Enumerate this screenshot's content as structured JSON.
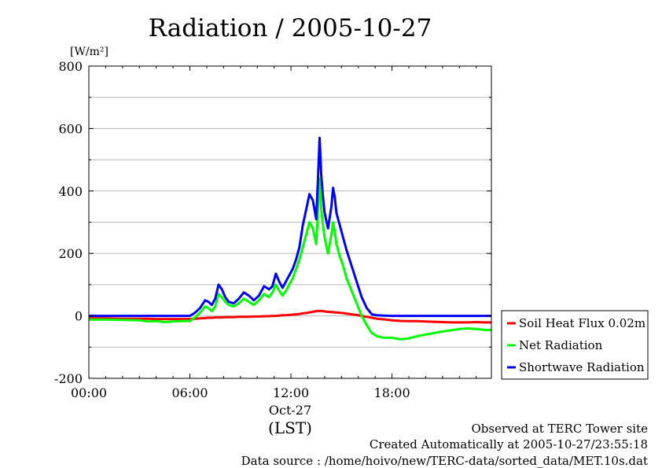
{
  "chart_data": {
    "type": "line",
    "title": "Radiation / 2005-10-27",
    "ylabel_unit": "[W/m²]",
    "xlabel": "(LST)",
    "x_date_label": "Oct-27",
    "xlim": [
      0,
      23.9
    ],
    "ylim": [
      -200,
      800
    ],
    "yticks": [
      -200,
      0,
      200,
      400,
      600,
      800
    ],
    "ytick_labels": [
      "-200",
      "0",
      "200",
      "400",
      "600",
      "800"
    ],
    "xticks": [
      0,
      6,
      12,
      18
    ],
    "xtick_labels": [
      "00:00",
      "06:00",
      "12:00",
      "18:00"
    ],
    "grid": true,
    "legend_position": "right",
    "x": [
      0,
      1,
      2,
      3,
      3.5,
      4,
      4.5,
      5,
      5.5,
      6,
      6.3,
      6.6,
      6.9,
      7.1,
      7.3,
      7.5,
      7.7,
      7.9,
      8.1,
      8.3,
      8.6,
      8.9,
      9.2,
      9.5,
      9.8,
      10.1,
      10.4,
      10.7,
      10.9,
      11.1,
      11.3,
      11.5,
      11.7,
      11.9,
      12.1,
      12.3,
      12.5,
      12.7,
      12.9,
      13.1,
      13.3,
      13.5,
      13.6,
      13.7,
      13.8,
      13.9,
      14.0,
      14.2,
      14.4,
      14.5,
      14.6,
      14.7,
      14.9,
      15.1,
      15.3,
      15.6,
      15.9,
      16.2,
      16.5,
      16.8,
      17.1,
      17.5,
      18,
      18.5,
      19,
      19.5,
      20,
      20.5,
      21,
      21.5,
      22,
      22.5,
      23,
      23.5,
      23.9
    ],
    "series": [
      {
        "name": "Soil Heat Flux 0.02m",
        "color": "#ff0000",
        "values": [
          -8,
          -8,
          -9,
          -9,
          -9,
          -10,
          -10,
          -10,
          -10,
          -10,
          -9,
          -8,
          -7,
          -6,
          -6,
          -5,
          -5,
          -5,
          -4,
          -4,
          -4,
          -3,
          -3,
          -3,
          -2,
          -2,
          -1,
          -1,
          0,
          0,
          1,
          2,
          2,
          3,
          4,
          5,
          6,
          8,
          9,
          11,
          13,
          15,
          16,
          15,
          16,
          15,
          14,
          13,
          12,
          12,
          11,
          11,
          10,
          9,
          7,
          5,
          3,
          0,
          -3,
          -6,
          -9,
          -11,
          -14,
          -16,
          -17,
          -17,
          -18,
          -19,
          -20,
          -21,
          -21,
          -21,
          -20,
          -21,
          -21
        ]
      },
      {
        "name": "Net Radiation",
        "color": "#00ff00",
        "values": [
          -12,
          -12,
          -13,
          -14,
          -18,
          -17,
          -20,
          -18,
          -17,
          -16,
          -5,
          10,
          30,
          25,
          15,
          30,
          70,
          60,
          45,
          35,
          30,
          40,
          55,
          45,
          35,
          50,
          70,
          60,
          75,
          100,
          80,
          65,
          80,
          100,
          120,
          150,
          180,
          220,
          260,
          300,
          280,
          230,
          330,
          440,
          340,
          290,
          250,
          200,
          260,
          300,
          270,
          230,
          190,
          160,
          120,
          80,
          40,
          0,
          -30,
          -55,
          -65,
          -70,
          -70,
          -75,
          -72,
          -65,
          -60,
          -55,
          -50,
          -46,
          -42,
          -40,
          -42,
          -45,
          -45
        ]
      },
      {
        "name": "Shortwave Radiation",
        "color": "#0000ff",
        "values": [
          0,
          0,
          0,
          0,
          0,
          0,
          0,
          0,
          0,
          0,
          10,
          25,
          50,
          45,
          35,
          55,
          100,
          85,
          60,
          45,
          40,
          55,
          75,
          65,
          50,
          65,
          95,
          85,
          95,
          135,
          110,
          90,
          110,
          130,
          150,
          180,
          220,
          290,
          340,
          390,
          370,
          310,
          430,
          570,
          450,
          380,
          330,
          280,
          350,
          410,
          380,
          330,
          290,
          250,
          210,
          160,
          110,
          60,
          25,
          5,
          2,
          1,
          0,
          0,
          0,
          0,
          0,
          0,
          0,
          0,
          0,
          0,
          0,
          0,
          0
        ]
      }
    ]
  },
  "legend": {
    "items": [
      {
        "label": "Soil Heat Flux 0.02m",
        "color": "#ff0000"
      },
      {
        "label": "Net Radiation",
        "color": "#00ff00"
      },
      {
        "label": "Shortwave Radiation",
        "color": "#0000ff"
      }
    ]
  },
  "footer": {
    "line1": "Observed at TERC Tower site",
    "line2": "Created Automatically at 2005-10-27/23:55:18",
    "line3": "Data source : /home/hoivo/new/TERC-data/sorted_data/MET.10s.dat"
  }
}
